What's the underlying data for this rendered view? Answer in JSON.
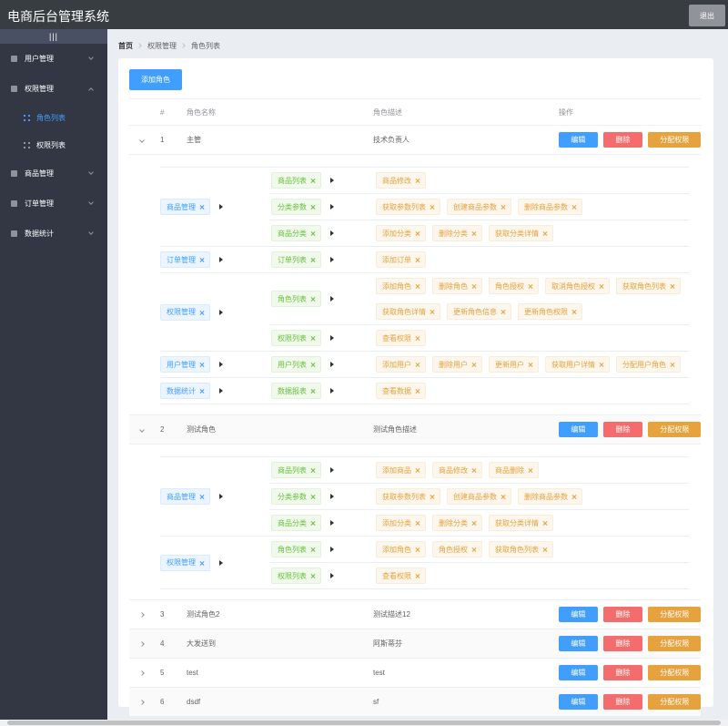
{
  "header": {
    "title": "电商后台管理系统",
    "logout": "退出"
  },
  "sidebar": {
    "toggle": "|||",
    "menu": [
      {
        "label": "用户管理",
        "children": []
      },
      {
        "label": "权限管理",
        "open": true,
        "children": [
          {
            "label": "角色列表",
            "active": true
          },
          {
            "label": "权限列表"
          }
        ]
      },
      {
        "label": "商品管理",
        "children": []
      },
      {
        "label": "订单管理",
        "children": []
      },
      {
        "label": "数据统计",
        "children": []
      }
    ]
  },
  "breadcrumb": [
    "首页",
    "权限管理",
    "角色列表"
  ],
  "add_button": "添加角色",
  "table": {
    "columns": [
      "#",
      "角色名称",
      "角色描述",
      "操作"
    ],
    "actions": [
      "编辑",
      "删除",
      "分配权限"
    ],
    "rows": [
      {
        "index": 1,
        "name": "主管",
        "desc": "技术负责人",
        "rights": [
          {
            "name": "商品管理",
            "children": [
              {
                "name": "商品列表",
                "children": [
                  "商品修改"
                ]
              },
              {
                "name": "分类参数",
                "children": [
                  "获取参数列表",
                  "创建商品参数",
                  "删除商品参数"
                ]
              },
              {
                "name": "商品分类",
                "children": [
                  "添加分类",
                  "删除分类",
                  "获取分类详情"
                ]
              }
            ]
          },
          {
            "name": "订单管理",
            "children": [
              {
                "name": "订单列表",
                "children": [
                  "添加订单"
                ]
              }
            ]
          },
          {
            "name": "权限管理",
            "children": [
              {
                "name": "角色列表",
                "children": [
                  "添加角色",
                  "删除角色",
                  "角色授权",
                  "取消角色授权",
                  "获取角色列表",
                  "获取角色详情",
                  "更新角色信息",
                  "更新角色权限"
                ]
              },
              {
                "name": "权限列表",
                "children": [
                  "查看权限"
                ]
              }
            ]
          },
          {
            "name": "用户管理",
            "children": [
              {
                "name": "用户列表",
                "children": [
                  "添加用户",
                  "删除用户",
                  "更新用户",
                  "获取用户详情",
                  "分配用户角色"
                ]
              }
            ]
          },
          {
            "name": "数据统计",
            "children": [
              {
                "name": "数据报表",
                "children": [
                  "查看数据"
                ]
              }
            ]
          }
        ]
      },
      {
        "index": 2,
        "name": "测试角色",
        "desc": "测试角色描述",
        "rights": [
          {
            "name": "商品管理",
            "children": [
              {
                "name": "商品列表",
                "children": [
                  "添加商品",
                  "商品修改",
                  "商品删除"
                ]
              },
              {
                "name": "分类参数",
                "children": [
                  "获取参数列表",
                  "创建商品参数",
                  "删除商品参数"
                ]
              },
              {
                "name": "商品分类",
                "children": [
                  "添加分类",
                  "删除分类",
                  "获取分类详情"
                ]
              }
            ]
          },
          {
            "name": "权限管理",
            "children": [
              {
                "name": "角色列表",
                "children": [
                  "添加角色",
                  "角色授权",
                  "获取角色列表"
                ]
              },
              {
                "name": "权限列表",
                "children": [
                  "查看权限"
                ]
              }
            ]
          }
        ]
      },
      {
        "index": 3,
        "name": "测试角色2",
        "desc": "测试描述12"
      },
      {
        "index": 4,
        "name": "大发送到",
        "desc": "阿斯蒂芬"
      },
      {
        "index": 5,
        "name": "test",
        "desc": "test"
      },
      {
        "index": 6,
        "name": "dsdf",
        "desc": "sf"
      }
    ]
  }
}
